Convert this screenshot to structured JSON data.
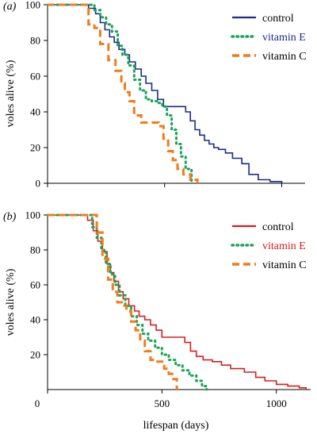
{
  "chart_data": [
    {
      "type": "line",
      "panel_label": "(a)",
      "ylabel": "voles alive (%)",
      "xlabel": "",
      "xlim": [
        0,
        1100
      ],
      "ylim": [
        0,
        100
      ],
      "yticks": [
        0,
        20,
        40,
        60,
        80,
        100
      ],
      "xticks": [
        0,
        500,
        1000
      ],
      "show_x_tick_labels": false,
      "legend": "top-right",
      "series": [
        {
          "name": "control",
          "color": "#1f2a8a",
          "style": "solid",
          "label_color": "#000000",
          "x": [
            0,
            175,
            205,
            225,
            245,
            265,
            285,
            305,
            330,
            350,
            375,
            400,
            420,
            445,
            470,
            495,
            520,
            550,
            570,
            590,
            610,
            630,
            650,
            670,
            690,
            710,
            730,
            760,
            790,
            830,
            860,
            900,
            950,
            1000
          ],
          "y": [
            100,
            98,
            95,
            90,
            86,
            82,
            79,
            75,
            72,
            68,
            64,
            60,
            56,
            52,
            47,
            43,
            43,
            43,
            43,
            40,
            35,
            30,
            27,
            24,
            22,
            20,
            19,
            17,
            14,
            11,
            5,
            2,
            1,
            0
          ]
        },
        {
          "name": "vitamin E",
          "color": "#1aa35a",
          "style": "dotted",
          "label_color": "#1f2a8a",
          "x": [
            0,
            185,
            200,
            225,
            250,
            275,
            300,
            320,
            345,
            370,
            395,
            420,
            445,
            470,
            490,
            510,
            530,
            550,
            570,
            590,
            615
          ],
          "y": [
            100,
            100,
            97,
            93,
            89,
            85,
            77,
            72,
            66,
            58,
            52,
            47,
            46,
            45,
            43,
            38,
            30,
            22,
            15,
            8,
            0
          ]
        },
        {
          "name": "vitamin C",
          "color": "#f07c1c",
          "style": "dashed",
          "label_color": "#000000",
          "x": [
            0,
            155,
            175,
            200,
            225,
            260,
            290,
            315,
            330,
            350,
            370,
            400,
            430,
            455,
            475,
            495,
            515,
            535,
            555,
            580,
            610,
            640
          ],
          "y": [
            100,
            100,
            89,
            87,
            78,
            69,
            63,
            56,
            51,
            46,
            38,
            34,
            34,
            34,
            32,
            25,
            18,
            13,
            8,
            5,
            2,
            0
          ]
        }
      ]
    },
    {
      "type": "line",
      "panel_label": "(b)",
      "ylabel": "voles alive (%)",
      "xlabel": "lifespan (days)",
      "xlim": [
        0,
        1150
      ],
      "ylim": [
        0,
        100
      ],
      "yticks": [
        20,
        40,
        60,
        80,
        100
      ],
      "xticks": [
        0,
        500,
        1000
      ],
      "show_x_tick_labels": true,
      "legend": "top-right",
      "series": [
        {
          "name": "control",
          "color": "#d81e1e",
          "style": "solid",
          "label_color": "#000000",
          "x": [
            0,
            150,
            175,
            200,
            220,
            240,
            260,
            275,
            290,
            310,
            330,
            355,
            380,
            400,
            425,
            450,
            475,
            500,
            525,
            555,
            575,
            600,
            625,
            650,
            680,
            720,
            760,
            800,
            860,
            910,
            950,
            1000,
            1050,
            1100,
            1130
          ],
          "y": [
            100,
            100,
            97,
            91,
            85,
            79,
            72,
            67,
            62,
            56,
            52,
            48,
            45,
            42,
            40,
            37,
            34,
            30,
            30,
            30,
            30,
            27,
            22,
            19,
            17,
            16,
            14,
            12,
            10,
            7,
            5,
            3,
            2,
            1,
            0
          ]
        },
        {
          "name": "vitamin E",
          "color": "#1aa35a",
          "style": "dotted",
          "label_color": "#d81e1e",
          "x": [
            0,
            170,
            195,
            215,
            235,
            255,
            275,
            295,
            315,
            340,
            365,
            390,
            415,
            440,
            470,
            500,
            530,
            560,
            590,
            620,
            650,
            675,
            695
          ],
          "y": [
            100,
            100,
            93,
            87,
            80,
            72,
            66,
            60,
            54,
            48,
            42,
            37,
            32,
            28,
            24,
            20,
            17,
            14,
            11,
            8,
            5,
            2,
            0
          ]
        },
        {
          "name": "vitamin C",
          "color": "#f07c1c",
          "style": "dashed",
          "label_color": "#000000",
          "x": [
            0,
            190,
            215,
            240,
            265,
            285,
            305,
            325,
            345,
            365,
            385,
            405,
            425,
            450,
            470,
            490,
            510,
            530,
            550,
            565
          ],
          "y": [
            100,
            100,
            90,
            75,
            63,
            56,
            50,
            48,
            45,
            39,
            34,
            28,
            22,
            17,
            16,
            16,
            12,
            9,
            6,
            0
          ]
        }
      ]
    }
  ]
}
